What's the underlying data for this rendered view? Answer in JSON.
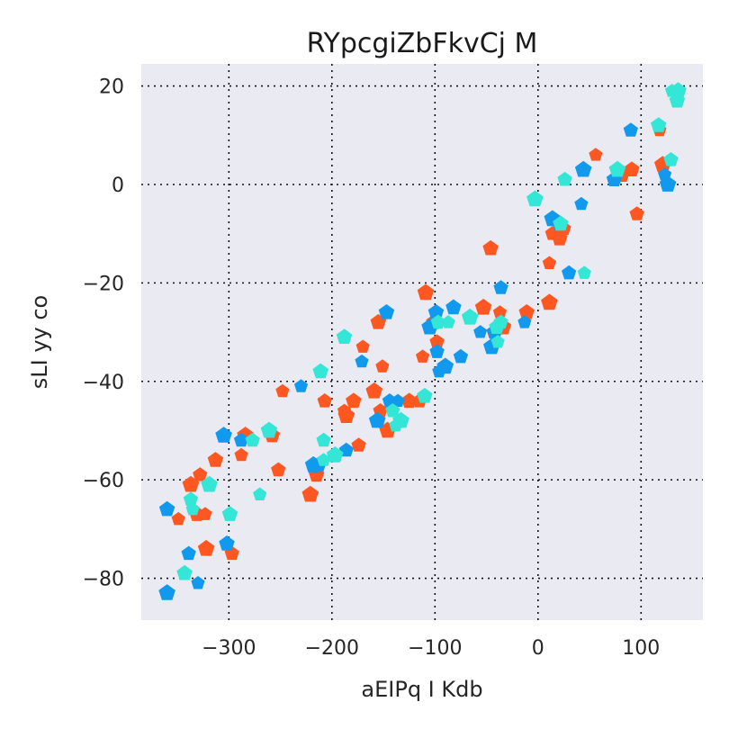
{
  "chart_data": {
    "type": "scatter",
    "title": "RYpcgiZbFkvCj M",
    "xlabel": "aEIPq I Kdb",
    "ylabel": "sLI  yy co",
    "xlim": [
      -385,
      160
    ],
    "ylim": [
      -88.5,
      24.5
    ],
    "xticks": [
      -300,
      -200,
      -100,
      0,
      100
    ],
    "yticks": [
      -80,
      -60,
      -40,
      -20,
      0,
      20
    ],
    "xtick_labels": [
      "−300",
      "−200",
      "−100",
      "0",
      "100"
    ],
    "ytick_labels": [
      "−80",
      "−60",
      "−40",
      "−20",
      "0",
      "20"
    ],
    "grid": true,
    "background": "#eaeaf2",
    "marker": "pentagon",
    "series": [
      {
        "color": "#ff5722",
        "points": [
          [
            -349,
            -68
          ],
          [
            -337,
            -61
          ],
          [
            -331,
            -67
          ],
          [
            -328,
            -59
          ],
          [
            -323,
            -67
          ],
          [
            -322,
            -74
          ],
          [
            -313,
            -56
          ],
          [
            -297,
            -75
          ],
          [
            -288,
            -55
          ],
          [
            -284,
            -51
          ],
          [
            -258,
            -51
          ],
          [
            -252,
            -58
          ],
          [
            -248,
            -42
          ],
          [
            -221,
            -63
          ],
          [
            -215,
            -59
          ],
          [
            -207,
            -44
          ],
          [
            -188,
            -46
          ],
          [
            -186,
            -47
          ],
          [
            -179,
            -44
          ],
          [
            -174,
            -53
          ],
          [
            -170,
            -33
          ],
          [
            -159,
            -42
          ],
          [
            -155,
            -28
          ],
          [
            -153,
            -46
          ],
          [
            -151,
            -37
          ],
          [
            -146,
            -50
          ],
          [
            -125,
            -44
          ],
          [
            -115,
            -44
          ],
          [
            -112,
            -35
          ],
          [
            -109,
            -22
          ],
          [
            -101,
            -28
          ],
          [
            -98,
            -32
          ],
          [
            -96,
            -38
          ],
          [
            -53,
            -25
          ],
          [
            -46,
            -13
          ],
          [
            -43,
            -30
          ],
          [
            -37,
            -26
          ],
          [
            -34,
            -29
          ],
          [
            -11,
            -26
          ],
          [
            14,
            -10
          ],
          [
            11,
            -16
          ],
          [
            11,
            -24
          ],
          [
            21,
            -11
          ],
          [
            25,
            -9
          ],
          [
            56,
            6
          ],
          [
            81,
            2
          ],
          [
            91,
            3
          ],
          [
            96,
            -6
          ],
          [
            118,
            11
          ],
          [
            121,
            4
          ]
        ]
      },
      {
        "color": "#1199ee",
        "points": [
          [
            -360,
            -83
          ],
          [
            -360,
            -66
          ],
          [
            -339,
            -75
          ],
          [
            -330,
            -81
          ],
          [
            -305,
            -51
          ],
          [
            -302,
            -73
          ],
          [
            -288,
            -52
          ],
          [
            -230,
            -41
          ],
          [
            -218,
            -57
          ],
          [
            -213,
            -57
          ],
          [
            -186,
            -54
          ],
          [
            -171,
            -36
          ],
          [
            -156,
            -48
          ],
          [
            -147,
            -26
          ],
          [
            -144,
            -44
          ],
          [
            -136,
            -44
          ],
          [
            -105,
            -29
          ],
          [
            -99,
            -26
          ],
          [
            -98,
            -34
          ],
          [
            -96,
            -38
          ],
          [
            -90,
            -37
          ],
          [
            -82,
            -25
          ],
          [
            -75,
            -35
          ],
          [
            -56,
            -30
          ],
          [
            -45,
            -33
          ],
          [
            -42,
            -30
          ],
          [
            -36,
            -21
          ],
          [
            -13,
            -28
          ],
          [
            14,
            -7
          ],
          [
            21,
            -8
          ],
          [
            30,
            -18
          ],
          [
            42,
            -4
          ],
          [
            44,
            3
          ],
          [
            74,
            1
          ],
          [
            90,
            11
          ],
          [
            123,
            2
          ],
          [
            126,
            0
          ]
        ]
      },
      {
        "color": "#33e6d6",
        "points": [
          [
            -343,
            -79
          ],
          [
            -337,
            -64
          ],
          [
            -335,
            -66
          ],
          [
            -319,
            -61
          ],
          [
            -299,
            -67
          ],
          [
            -277,
            -52
          ],
          [
            -270,
            -63
          ],
          [
            -261,
            -50
          ],
          [
            -211,
            -38
          ],
          [
            -208,
            -52
          ],
          [
            -208,
            -56
          ],
          [
            -197,
            -55
          ],
          [
            -188,
            -31
          ],
          [
            -141,
            -46
          ],
          [
            -138,
            -49
          ],
          [
            -133,
            -48
          ],
          [
            -110,
            -43
          ],
          [
            -97,
            -28
          ],
          [
            -87,
            -28
          ],
          [
            -66,
            -27
          ],
          [
            -40,
            -29
          ],
          [
            -36,
            -28
          ],
          [
            -39,
            -32
          ],
          [
            -3,
            -3
          ],
          [
            22,
            -8
          ],
          [
            26,
            1
          ],
          [
            45,
            -18
          ],
          [
            77,
            3
          ],
          [
            117,
            12
          ],
          [
            129,
            5
          ],
          [
            130,
            19
          ],
          [
            136,
            19
          ],
          [
            135,
            17
          ]
        ]
      }
    ]
  }
}
